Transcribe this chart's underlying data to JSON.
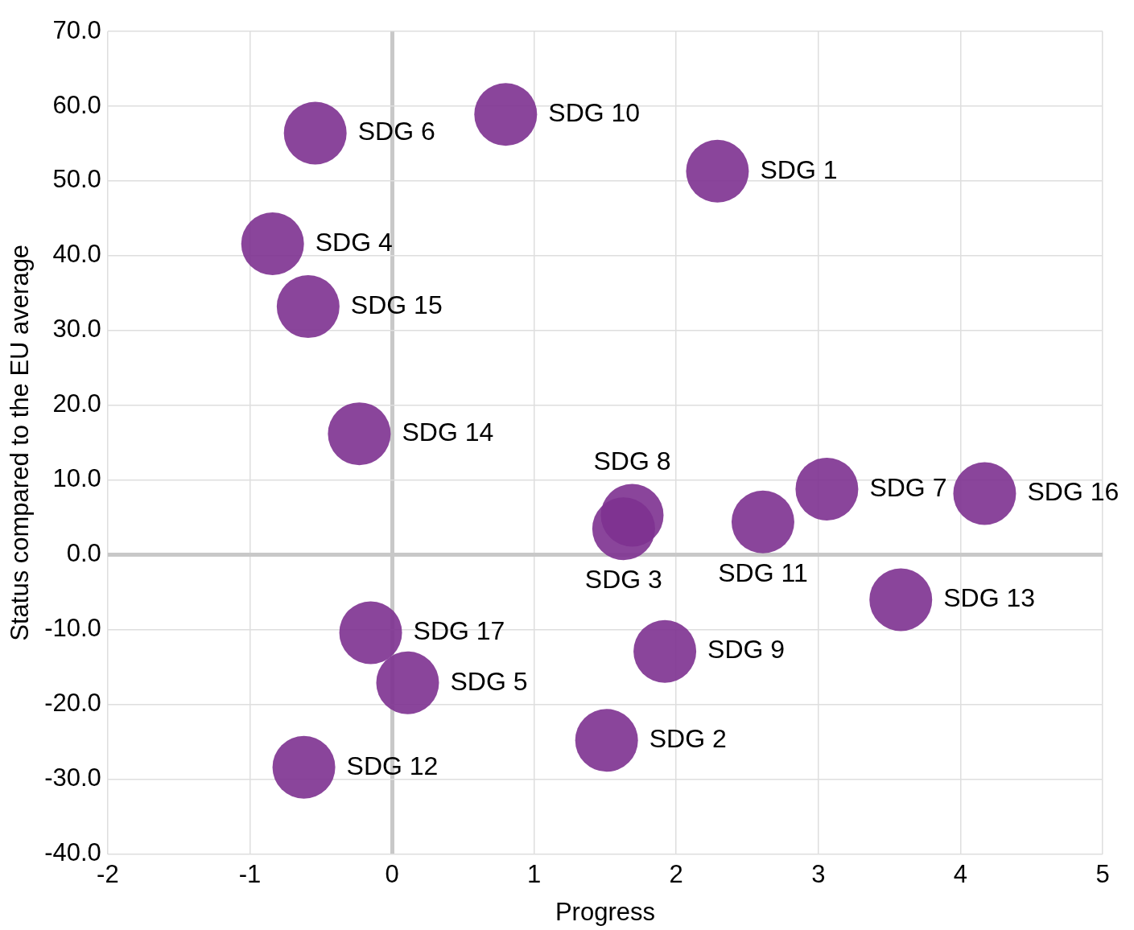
{
  "chart_data": {
    "type": "scatter",
    "xlabel": "Progress",
    "ylabel": "Status compared to the EU average",
    "xlim": [
      -2,
      5
    ],
    "xticks": [
      -2,
      -1,
      0,
      1,
      2,
      3,
      4,
      5
    ],
    "ylim": [
      -40,
      70
    ],
    "yticks": [
      {
        "value": -40,
        "label": "-40.0"
      },
      {
        "value": -30,
        "label": "-30.0"
      },
      {
        "value": -20,
        "label": "-20.0"
      },
      {
        "value": -10,
        "label": "-10.0"
      },
      {
        "value": 0,
        "label": "0.0"
      },
      {
        "value": 10,
        "label": "10.0"
      },
      {
        "value": 20,
        "label": "20.0"
      },
      {
        "value": 30,
        "label": "30.0"
      },
      {
        "value": 40,
        "label": "40.0"
      },
      {
        "value": 50,
        "label": "50.0"
      },
      {
        "value": 60,
        "label": "60.0"
      },
      {
        "value": 70,
        "label": "70.0"
      }
    ],
    "grid": true,
    "marker": "circle",
    "x": [
      -0.54,
      0.8,
      2.29,
      -0.84,
      -0.59,
      -0.23,
      1.69,
      1.63,
      2.61,
      3.06,
      4.17,
      3.58,
      1.92,
      -0.15,
      0.11,
      1.51,
      -0.62
    ],
    "series": [
      {
        "color": "#7d3190",
        "values": [
          56.4,
          58.9,
          51.3,
          41.6,
          33.2,
          16.2,
          5.3,
          3.5,
          4.4,
          8.8,
          8.2,
          -6.0,
          -12.9,
          -10.4,
          -17.1,
          -24.8,
          -28.4
        ]
      }
    ],
    "annotations": [
      {
        "text": "SDG 6",
        "x": -0.54,
        "y": 56.4
      },
      {
        "text": "SDG 10",
        "x": 0.8,
        "y": 58.9
      },
      {
        "text": "SDG 1",
        "x": 2.29,
        "y": 51.3
      },
      {
        "text": "SDG 4",
        "x": -0.84,
        "y": 41.6
      },
      {
        "text": "SDG 15",
        "x": -0.59,
        "y": 33.2
      },
      {
        "text": "SDG 14",
        "x": -0.23,
        "y": 16.2
      },
      {
        "text": "SDG 8",
        "x": 1.69,
        "y": 5.3
      },
      {
        "text": "SDG 3",
        "x": 1.63,
        "y": 3.5
      },
      {
        "text": "SDG 11",
        "x": 2.61,
        "y": 4.4
      },
      {
        "text": "SDG 7",
        "x": 3.06,
        "y": 8.8
      },
      {
        "text": "SDG 16",
        "x": 4.17,
        "y": 8.2
      },
      {
        "text": "SDG 13",
        "x": 3.58,
        "y": -6.0
      },
      {
        "text": "SDG 9",
        "x": 1.92,
        "y": -12.9
      },
      {
        "text": "SDG 17",
        "x": -0.15,
        "y": -10.4
      },
      {
        "text": "SDG 5",
        "x": 0.11,
        "y": -17.1
      },
      {
        "text": "SDG 2",
        "x": 1.51,
        "y": -24.8
      },
      {
        "text": "SDG 12",
        "x": -0.62,
        "y": -28.4
      }
    ]
  }
}
